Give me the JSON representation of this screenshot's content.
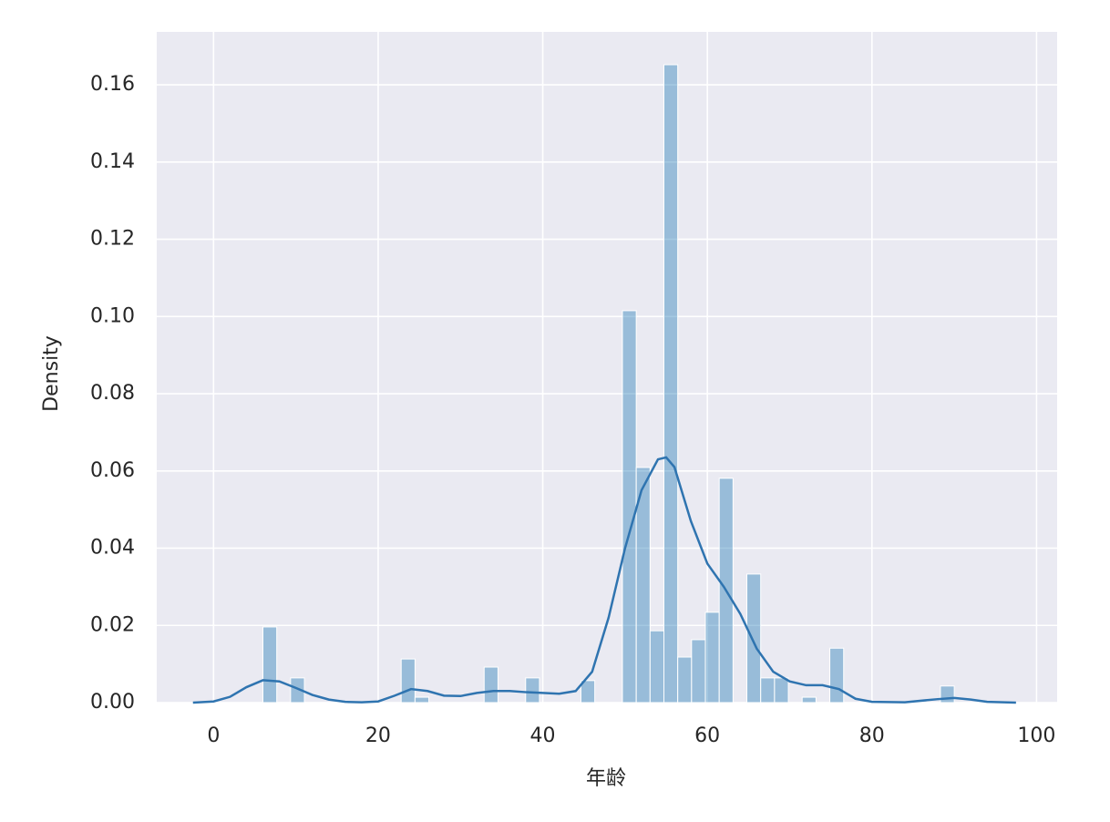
{
  "chart_data": {
    "type": "histogram",
    "x_label": "年龄",
    "y_label": "Density",
    "bins": [
      6,
      7.68,
      9.36,
      11.04,
      12.72,
      14.4,
      16.08,
      17.76,
      19.44,
      21.12,
      22.8,
      24.48,
      26.16,
      27.84,
      29.52,
      31.2,
      32.88,
      34.56,
      36.24,
      37.92,
      39.6,
      41.28,
      42.96,
      44.64,
      46.32,
      48,
      49.68,
      51.36,
      53.04,
      54.72,
      56.4,
      58.08,
      59.76,
      61.44,
      63.12,
      64.8,
      66.48,
      68.16,
      69.84,
      71.52,
      73.2,
      74.88,
      76.56,
      78.24,
      79.92,
      81.6,
      83.28,
      84.96,
      86.64,
      88.32,
      90
    ],
    "values": [
      0.0196,
      0,
      0.0064,
      0,
      0,
      0,
      0,
      0,
      0,
      0,
      0.0113,
      0.0014,
      0,
      0,
      0,
      0,
      0.0092,
      0,
      0,
      0.0064,
      0,
      0,
      0,
      0.0057,
      0,
      0,
      0.1015,
      0.0609,
      0.0186,
      0.1652,
      0.0118,
      0.0163,
      0.0234,
      0.0581,
      0,
      0.0333,
      0.0064,
      0.0064,
      0,
      0.0014,
      0,
      0.0141,
      0,
      0,
      0,
      0,
      0,
      0,
      0,
      0.0043
    ],
    "color": "#1f77b4",
    "kde": {
      "color": "#2f74b0",
      "x": [
        -2.5,
        0,
        2,
        4,
        6,
        8,
        10,
        12,
        14,
        16,
        18,
        20,
        22,
        24,
        26,
        28,
        30,
        32,
        34,
        36,
        38,
        40,
        42,
        44,
        46,
        48,
        50,
        52,
        54,
        55,
        56,
        58,
        60,
        62,
        64,
        66,
        68,
        70,
        72,
        74,
        76,
        78,
        80,
        84,
        88,
        90,
        92,
        94,
        97.5
      ],
      "values": [
        0,
        0.0003,
        0.0015,
        0.004,
        0.0058,
        0.0055,
        0.0038,
        0.002,
        0.0008,
        0.0002,
        0.0001,
        0.0003,
        0.0018,
        0.0035,
        0.003,
        0.0018,
        0.0017,
        0.0025,
        0.003,
        0.003,
        0.0027,
        0.0025,
        0.0023,
        0.003,
        0.008,
        0.022,
        0.04,
        0.055,
        0.063,
        0.0635,
        0.061,
        0.047,
        0.036,
        0.03,
        0.023,
        0.014,
        0.008,
        0.0055,
        0.0045,
        0.0045,
        0.0035,
        0.001,
        0.0002,
        0.0001,
        0.0009,
        0.0012,
        0.0008,
        0.0002,
        0
      ]
    },
    "xlim": [
      -6.9,
      102.5
    ],
    "xticks": [
      0,
      20,
      40,
      60,
      80,
      100
    ],
    "ylim": [
      0,
      0.1737
    ],
    "yticks": [
      {
        "value": 0,
        "label": "0.00"
      },
      {
        "value": 0.02,
        "label": "0.02"
      },
      {
        "value": 0.04,
        "label": "0.04"
      },
      {
        "value": 0.06,
        "label": "0.06"
      },
      {
        "value": 0.08,
        "label": "0.08"
      },
      {
        "value": 0.1,
        "label": "0.10"
      },
      {
        "value": 0.12,
        "label": "0.12"
      },
      {
        "value": 0.14,
        "label": "0.14"
      },
      {
        "value": 0.16,
        "label": "0.16"
      }
    ],
    "grid": true
  }
}
